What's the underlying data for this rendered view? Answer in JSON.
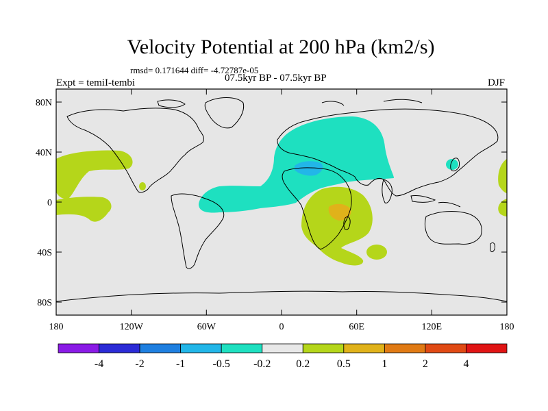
{
  "title": "Velocity Potential at 200 hPa (km2/s)",
  "stats": "rmsd= 0.171644 diff= -4.72787e-05",
  "period": "07.5kyr BP - 07.5kyr BP",
  "experiment": "Expt = temiI-tembi",
  "season": "DJF",
  "map": {
    "lat_ticks": [
      "80N",
      "40N",
      "0",
      "40S",
      "80S"
    ],
    "lon_ticks": [
      "180",
      "120W",
      "60W",
      "0",
      "60E",
      "120E",
      "180"
    ]
  },
  "colorbar": {
    "labels": [
      "-4",
      "-2",
      "-1",
      "-0.5",
      "-0.2",
      "0.2",
      "0.5",
      "1",
      "2",
      "4"
    ],
    "colors": [
      "#8a1ae6",
      "#2b2bd6",
      "#1e7fe0",
      "#22b6e8",
      "#1ee0c0",
      "#e8e8e8",
      "#b5d61a",
      "#e0b21a",
      "#e07a14",
      "#e04a14",
      "#e01414"
    ]
  }
}
